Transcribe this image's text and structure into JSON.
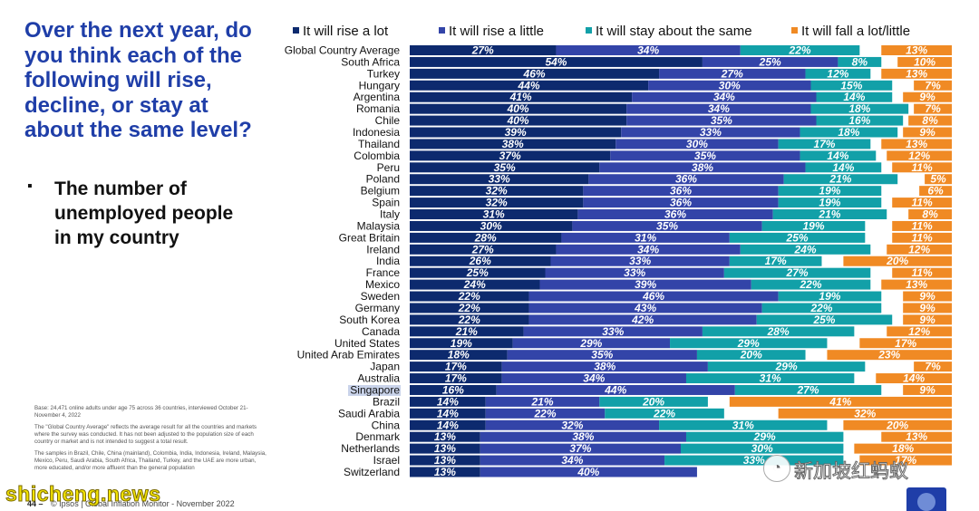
{
  "question": "Over the next year, do you think each of the following will rise, decline, or stay at about the same level?",
  "bullet": {
    "mark": "▪",
    "text": "The number of unemployed people in my country"
  },
  "notes": [
    "Base: 24,471 online adults under age 75 across 36 countries, interviewed October 21-November 4, 2022",
    "The \"Global Country Average\" reflects the average result for all the countries and markets where the survey was conducted. It has not been adjusted to the population size of each country or market and is not intended to suggest a total result.",
    "The samples in Brazil, Chile, China (mainland), Colombia, India, Indonesia, Ireland, Malaysia, Mexico, Peru, Saudi Arabia, South Africa, Thailand, Turkey, and the UAE are more urban, more educated, and/or more affluent than the general population"
  ],
  "footer": {
    "page_number": "44 –",
    "text": "© Ipsos | Global Inflation Monitor - November 2022"
  },
  "watermark_left": "shicheng.news",
  "watermark_right": "新加坡红蚂蚁",
  "watermark_icon": "wechat-icon",
  "chart_data": {
    "type": "bar",
    "orientation": "horizontal-stacked",
    "legend_position": "top",
    "highlight_category": "Singapore",
    "highlight_color": "#c9d3ea",
    "series": [
      {
        "name": "It will rise a lot",
        "color": "#0d2a6e",
        "values": [
          27,
          54,
          46,
          44,
          41,
          40,
          40,
          39,
          38,
          37,
          35,
          33,
          32,
          32,
          31,
          30,
          28,
          27,
          26,
          25,
          24,
          22,
          22,
          22,
          21,
          19,
          18,
          17,
          17,
          16,
          14,
          14,
          14,
          13,
          13,
          13,
          13
        ]
      },
      {
        "name": "It will rise a little",
        "color": "#3344a8",
        "values": [
          34,
          25,
          27,
          30,
          34,
          34,
          35,
          33,
          30,
          35,
          38,
          36,
          36,
          36,
          36,
          35,
          31,
          34,
          33,
          33,
          39,
          46,
          43,
          42,
          33,
          29,
          35,
          38,
          34,
          44,
          21,
          22,
          32,
          38,
          37,
          34,
          40
        ]
      },
      {
        "name": "It will stay about the same",
        "color": "#12a0a8",
        "values": [
          22,
          8,
          12,
          15,
          14,
          18,
          16,
          18,
          17,
          14,
          14,
          21,
          19,
          19,
          21,
          19,
          25,
          24,
          17,
          27,
          22,
          19,
          22,
          25,
          28,
          29,
          20,
          29,
          31,
          27,
          20,
          22,
          31,
          29,
          30,
          33,
          null
        ]
      },
      {
        "name": "It will fall a lot/little",
        "color": "#f08a24",
        "values": [
          13,
          10,
          13,
          7,
          9,
          7,
          8,
          9,
          13,
          12,
          11,
          5,
          6,
          11,
          8,
          11,
          11,
          12,
          20,
          11,
          13,
          9,
          9,
          9,
          12,
          17,
          23,
          7,
          14,
          9,
          41,
          32,
          20,
          13,
          18,
          17,
          null
        ]
      }
    ],
    "categories": [
      "Global Country Average",
      "South Africa",
      "Turkey",
      "Hungary",
      "Argentina",
      "Romania",
      "Chile",
      "Indonesia",
      "Thailand",
      "Colombia",
      "Peru",
      "Poland",
      "Belgium",
      "Spain",
      "Italy",
      "Malaysia",
      "Great Britain",
      "Ireland",
      "India",
      "France",
      "Mexico",
      "Sweden",
      "Germany",
      "South Korea",
      "Canada",
      "United States",
      "United Arab Emirates",
      "Japan",
      "Australia",
      "Singapore",
      "Brazil",
      "Saudi Arabia",
      "China",
      "Denmark",
      "Netherlands",
      "Israel",
      "Switzerland"
    ],
    "value_suffix": "%",
    "xlim": [
      0,
      100
    ]
  }
}
